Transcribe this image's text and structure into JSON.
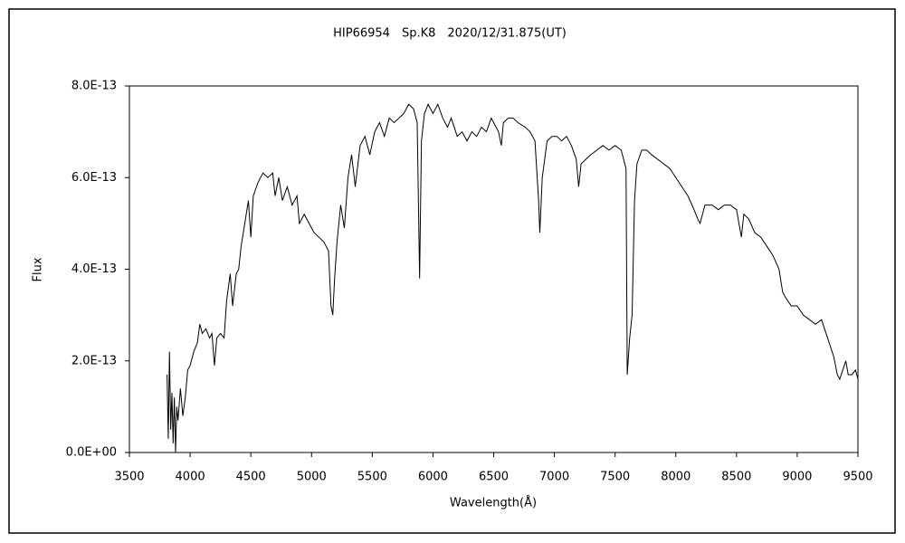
{
  "chart_data": {
    "type": "line",
    "title": "HIP66954　Sp.K8　2020/12/31.875(UT)",
    "x_label": "Wavelength(Å)",
    "y_label": "Flux",
    "color": "#000000",
    "grid": false,
    "xlim": [
      3500,
      9500
    ],
    "xticks": [
      3500,
      4000,
      4500,
      5000,
      5500,
      6000,
      6500,
      7000,
      7500,
      8000,
      8500,
      9000,
      9500
    ],
    "ylim": [
      0,
      8e-13
    ],
    "yticks": [
      {
        "value": 0,
        "label": "0.0E+00"
      },
      {
        "value": 2e-13,
        "label": "2.0E-13"
      },
      {
        "value": 4e-13,
        "label": "4.0E-13"
      },
      {
        "value": 6e-13,
        "label": "6.0E-13"
      },
      {
        "value": 8e-13,
        "label": "8.0E-13"
      }
    ],
    "x": [
      3810,
      3820,
      3830,
      3840,
      3850,
      3860,
      3870,
      3880,
      3890,
      3900,
      3920,
      3940,
      3960,
      3980,
      4000,
      4030,
      4060,
      4080,
      4100,
      4130,
      4160,
      4180,
      4200,
      4220,
      4250,
      4280,
      4300,
      4330,
      4350,
      4380,
      4400,
      4420,
      4450,
      4480,
      4500,
      4520,
      4560,
      4600,
      4640,
      4680,
      4700,
      4730,
      4760,
      4800,
      4840,
      4880,
      4900,
      4940,
      4980,
      5020,
      5060,
      5100,
      5140,
      5160,
      5175,
      5190,
      5210,
      5240,
      5270,
      5300,
      5330,
      5360,
      5400,
      5440,
      5480,
      5520,
      5560,
      5600,
      5640,
      5680,
      5720,
      5760,
      5800,
      5840,
      5870,
      5890,
      5905,
      5930,
      5960,
      6000,
      6040,
      6080,
      6120,
      6150,
      6200,
      6240,
      6280,
      6320,
      6360,
      6400,
      6440,
      6480,
      6500,
      6540,
      6563,
      6580,
      6620,
      6660,
      6700,
      6760,
      6800,
      6840,
      6870,
      6880,
      6900,
      6940,
      6980,
      7020,
      7060,
      7100,
      7140,
      7180,
      7200,
      7220,
      7260,
      7300,
      7350,
      7400,
      7450,
      7500,
      7550,
      7590,
      7600,
      7620,
      7640,
      7660,
      7680,
      7720,
      7760,
      7800,
      7850,
      7900,
      7950,
      8000,
      8050,
      8100,
      8150,
      8180,
      8200,
      8240,
      8300,
      8350,
      8400,
      8450,
      8500,
      8540,
      8560,
      8600,
      8650,
      8700,
      8750,
      8800,
      8850,
      8880,
      8900,
      8950,
      9000,
      9050,
      9100,
      9150,
      9200,
      9250,
      9300,
      9330,
      9350,
      9400,
      9420,
      9450,
      9480,
      9500
    ],
    "values": [
      1.7e-13,
      3e-14,
      2.2e-13,
      5e-14,
      1.3e-13,
      2e-14,
      1.2e-13,
      0,
      1e-13,
      7e-14,
      1.4e-13,
      8e-14,
      1.2e-13,
      1.8e-13,
      1.9e-13,
      2.2e-13,
      2.4e-13,
      2.8e-13,
      2.6e-13,
      2.7e-13,
      2.5e-13,
      2.6e-13,
      1.9e-13,
      2.5e-13,
      2.6e-13,
      2.5e-13,
      3.3e-13,
      3.9e-13,
      3.2e-13,
      3.9e-13,
      4e-13,
      4.5e-13,
      5e-13,
      5.5e-13,
      4.7e-13,
      5.6e-13,
      5.9e-13,
      6.1e-13,
      6e-13,
      6.1e-13,
      5.6e-13,
      6e-13,
      5.5e-13,
      5.8e-13,
      5.4e-13,
      5.6e-13,
      5e-13,
      5.2e-13,
      5e-13,
      4.8e-13,
      4.7e-13,
      4.6e-13,
      4.4e-13,
      3.2e-13,
      3e-13,
      3.8e-13,
      4.6e-13,
      5.4e-13,
      4.9e-13,
      6e-13,
      6.5e-13,
      5.8e-13,
      6.7e-13,
      6.9e-13,
      6.5e-13,
      7e-13,
      7.2e-13,
      6.9e-13,
      7.3e-13,
      7.2e-13,
      7.3e-13,
      7.4e-13,
      7.6e-13,
      7.5e-13,
      7.2e-13,
      3.8e-13,
      6.8e-13,
      7.4e-13,
      7.6e-13,
      7.4e-13,
      7.6e-13,
      7.3e-13,
      7.1e-13,
      7.3e-13,
      6.9e-13,
      7e-13,
      6.8e-13,
      7e-13,
      6.9e-13,
      7.1e-13,
      7e-13,
      7.3e-13,
      7.2e-13,
      7e-13,
      6.7e-13,
      7.2e-13,
      7.3e-13,
      7.3e-13,
      7.2e-13,
      7.1e-13,
      7e-13,
      6.8e-13,
      5.5e-13,
      4.8e-13,
      6e-13,
      6.8e-13,
      6.9e-13,
      6.9e-13,
      6.8e-13,
      6.9e-13,
      6.7e-13,
      6.4e-13,
      5.8e-13,
      6.3e-13,
      6.4e-13,
      6.5e-13,
      6.6e-13,
      6.7e-13,
      6.6e-13,
      6.7e-13,
      6.6e-13,
      6.2e-13,
      1.7e-13,
      2.5e-13,
      3e-13,
      5.5e-13,
      6.3e-13,
      6.6e-13,
      6.6e-13,
      6.5e-13,
      6.4e-13,
      6.3e-13,
      6.2e-13,
      6e-13,
      5.8e-13,
      5.6e-13,
      5.3e-13,
      5.1e-13,
      5e-13,
      5.4e-13,
      5.4e-13,
      5.3e-13,
      5.4e-13,
      5.4e-13,
      5.3e-13,
      4.7e-13,
      5.2e-13,
      5.1e-13,
      4.8e-13,
      4.7e-13,
      4.5e-13,
      4.3e-13,
      4e-13,
      3.5e-13,
      3.4e-13,
      3.2e-13,
      3.2e-13,
      3e-13,
      2.9e-13,
      2.8e-13,
      2.9e-13,
      2.5e-13,
      2.1e-13,
      1.7e-13,
      1.6e-13,
      2e-13,
      1.7e-13,
      1.7e-13,
      1.8e-13,
      1.6e-13
    ]
  }
}
